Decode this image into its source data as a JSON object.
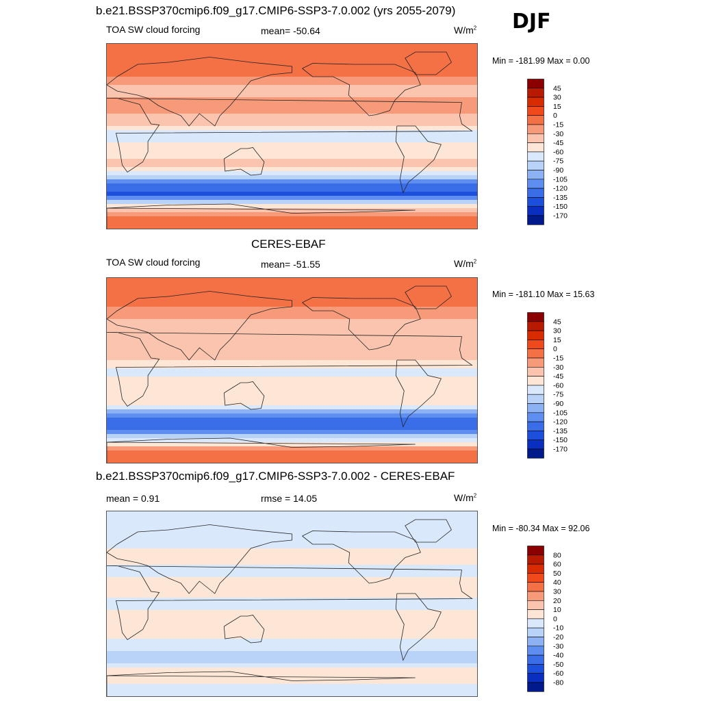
{
  "season": "DJF",
  "panels": [
    {
      "title": "b.e21.BSSP370cmip6.f09_g17.CMIP6-SSP3-7.0.002 (yrs 2055-2079)",
      "left_label": "TOA SW cloud forcing",
      "center_label": "mean= -50.64",
      "units_label": "W/m",
      "units_sup": "2",
      "minmax": "Min = -181.99 Max =   0.00",
      "colorbar": {
        "labels": [
          "45",
          "30",
          "15",
          "0",
          "-15",
          "-30",
          "-45",
          "-60",
          "-75",
          "-90",
          "-105",
          "-120",
          "-135",
          "-150",
          "-170"
        ],
        "colors": [
          "#8b0000",
          "#b81a00",
          "#d92b00",
          "#f04a1c",
          "#f47045",
          "#f79a7a",
          "#fac4ae",
          "#fde6d6",
          "#dae8fb",
          "#b8d2f8",
          "#8cb2f4",
          "#5e8ff0",
          "#3a6ee8",
          "#1b4fdc",
          "#0a2ebf",
          "#001a8c"
        ]
      }
    },
    {
      "title": "CERES-EBAF",
      "left_label": "TOA SW cloud forcing",
      "center_label": "mean= -51.55",
      "units_label": "W/m",
      "units_sup": "2",
      "minmax": "Min = -181.10 Max =  15.63",
      "colorbar": {
        "labels": [
          "45",
          "30",
          "15",
          "0",
          "-15",
          "-30",
          "-45",
          "-60",
          "-75",
          "-90",
          "-105",
          "-120",
          "-135",
          "-150",
          "-170"
        ],
        "colors": [
          "#8b0000",
          "#b81a00",
          "#d92b00",
          "#f04a1c",
          "#f47045",
          "#f79a7a",
          "#fac4ae",
          "#fde6d6",
          "#dae8fb",
          "#b8d2f8",
          "#8cb2f4",
          "#5e8ff0",
          "#3a6ee8",
          "#1b4fdc",
          "#0a2ebf",
          "#001a8c"
        ]
      }
    },
    {
      "title": "b.e21.BSSP370cmip6.f09_g17.CMIP6-SSP3-7.0.002 - CERES-EBAF",
      "left_label": "mean =   0.91",
      "center_label": "rmse =  14.05",
      "units_label": "W/m",
      "units_sup": "2",
      "minmax": "Min = -80.34 Max =  92.06",
      "colorbar": {
        "labels": [
          "80",
          "60",
          "50",
          "40",
          "30",
          "20",
          "10",
          "0",
          "-10",
          "-20",
          "-30",
          "-40",
          "-50",
          "-60",
          "-80"
        ],
        "colors": [
          "#8b0000",
          "#b81a00",
          "#d92b00",
          "#f04a1c",
          "#f47045",
          "#f79a7a",
          "#fac4ae",
          "#fde6d6",
          "#dae8fb",
          "#b8d2f8",
          "#8cb2f4",
          "#5e8ff0",
          "#3a6ee8",
          "#1b4fdc",
          "#0a2ebf",
          "#001a8c"
        ]
      }
    }
  ],
  "chart_data": [
    {
      "type": "heatmap",
      "title": "b.e21.BSSP370cmip6.f09_g17.CMIP6-SSP3-7.0.002 (yrs 2055-2079)",
      "variable": "TOA SW cloud forcing",
      "units": "W/m2",
      "mean": -50.64,
      "min": -181.99,
      "max": 0.0,
      "contour_levels": [
        45,
        30,
        15,
        0,
        -15,
        -30,
        -45,
        -60,
        -75,
        -90,
        -105,
        -120,
        -135,
        -150,
        -170
      ],
      "latitude_band_estimates": {
        "lat": [
          80,
          60,
          45,
          30,
          15,
          0,
          -15,
          -30,
          -45,
          -55,
          -65,
          -80
        ],
        "value": [
          -5,
          -10,
          -35,
          -25,
          -35,
          -70,
          -50,
          -40,
          -110,
          -145,
          -70,
          -5
        ]
      }
    },
    {
      "type": "heatmap",
      "title": "CERES-EBAF",
      "variable": "TOA SW cloud forcing",
      "units": "W/m2",
      "mean": -51.55,
      "min": -181.1,
      "max": 15.63,
      "contour_levels": [
        45,
        30,
        15,
        0,
        -15,
        -30,
        -45,
        -60,
        -75,
        -90,
        -105,
        -120,
        -135,
        -150,
        -170
      ],
      "latitude_band_estimates": {
        "lat": [
          80,
          60,
          45,
          30,
          15,
          0,
          -15,
          -30,
          -45,
          -55,
          -65,
          -80
        ],
        "value": [
          -5,
          -15,
          -40,
          -30,
          -35,
          -65,
          -50,
          -45,
          -115,
          -140,
          -80,
          -5
        ]
      }
    },
    {
      "type": "heatmap",
      "title": "b.e21.BSSP370cmip6.f09_g17.CMIP6-SSP3-7.0.002 - CERES-EBAF",
      "variable": "TOA SW cloud forcing difference",
      "units": "W/m2",
      "mean": 0.91,
      "rmse": 14.05,
      "min": -80.34,
      "max": 92.06,
      "contour_levels": [
        80,
        60,
        50,
        40,
        30,
        20,
        10,
        0,
        -10,
        -20,
        -30,
        -40,
        -50,
        -60,
        -80
      ],
      "latitude_band_estimates": {
        "lat": [
          80,
          60,
          45,
          30,
          15,
          0,
          -15,
          -30,
          -45,
          -55,
          -65,
          -80
        ],
        "value": [
          0,
          -5,
          5,
          -5,
          10,
          -5,
          10,
          5,
          -10,
          -20,
          5,
          0
        ]
      }
    }
  ]
}
